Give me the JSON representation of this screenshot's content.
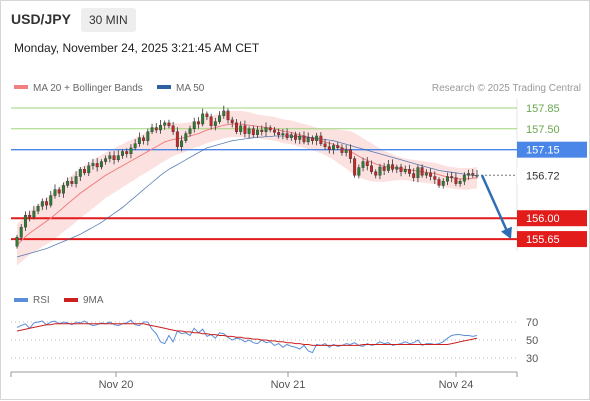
{
  "header": {
    "symbol": "USD/JPY",
    "timeframe": "30 MIN",
    "timestamp": "Monday, November 24, 2025 3:21:45 AM CET"
  },
  "legend": {
    "items": [
      {
        "label": "MA 20 + Bollinger Bands",
        "color": "#f08080"
      },
      {
        "label": "MA 50",
        "color": "#2f5fa3"
      }
    ]
  },
  "credit": "Research © 2025 Trading Central",
  "forecast_color": "#2f6db5",
  "chart_data": [
    {
      "type": "candlestick",
      "ylim": [
        155.45,
        158.0
      ],
      "x_ticks": [
        "Nov 20",
        "Nov 21",
        "Nov 24"
      ],
      "levels": [
        {
          "value": 157.85,
          "label": "157.85",
          "color": "#9fd67a",
          "kind": "resistance"
        },
        {
          "value": 157.5,
          "label": "157.50",
          "color": "#9fd67a",
          "kind": "resistance"
        },
        {
          "value": 157.15,
          "label": "157.15",
          "color": "#4a86e8",
          "kind": "pivot"
        },
        {
          "value": 156.0,
          "label": "156.00",
          "color": "#e21b1b",
          "kind": "support"
        },
        {
          "value": 155.65,
          "label": "155.65",
          "color": "#e21b1b",
          "kind": "support"
        }
      ],
      "last_price": {
        "value": 156.72,
        "label": "156.72"
      },
      "forecast": {
        "from": 156.72,
        "to": 155.65
      },
      "close": [
        155.68,
        155.85,
        156.05,
        156.02,
        156.12,
        156.2,
        156.28,
        156.22,
        156.38,
        156.48,
        156.42,
        156.55,
        156.62,
        156.58,
        156.7,
        156.82,
        156.76,
        156.88,
        156.92,
        156.86,
        156.95,
        157.0,
        157.05,
        156.98,
        157.05,
        157.12,
        157.08,
        157.18,
        157.25,
        157.35,
        157.3,
        157.45,
        157.52,
        157.48,
        157.56,
        157.6,
        157.55,
        157.45,
        157.2,
        157.3,
        157.42,
        157.5,
        157.62,
        157.58,
        157.75,
        157.7,
        157.55,
        157.62,
        157.72,
        157.8,
        157.65,
        157.6,
        157.45,
        157.55,
        157.42,
        157.5,
        157.4,
        157.48,
        157.45,
        157.52,
        157.48,
        157.44,
        157.4,
        157.42,
        157.35,
        157.4,
        157.32,
        157.38,
        157.28,
        157.35,
        157.3,
        157.38,
        157.25,
        157.2,
        157.15,
        157.22,
        157.18,
        157.1,
        157.15,
        157.0,
        156.72,
        156.85,
        156.95,
        156.88,
        156.78,
        156.72,
        156.86,
        156.8,
        156.9,
        156.82,
        156.86,
        156.78,
        156.82,
        156.75,
        156.68,
        156.85,
        156.72,
        156.76,
        156.7,
        156.65,
        156.55,
        156.62,
        156.7,
        156.68,
        156.58,
        156.62,
        156.72,
        156.75,
        156.72,
        156.72
      ],
      "ma20": [
        155.55,
        155.62,
        155.69,
        155.75,
        155.8,
        155.85,
        155.9,
        155.95,
        156.0,
        156.06,
        156.12,
        156.18,
        156.24,
        156.3,
        156.36,
        156.42,
        156.47,
        156.52,
        156.57,
        156.62,
        156.67,
        156.72,
        156.76,
        156.8,
        156.84,
        156.88,
        156.92,
        156.96,
        157.0,
        157.04,
        157.08,
        157.12,
        157.16,
        157.2,
        157.24,
        157.28,
        157.3,
        157.32,
        157.33,
        157.34,
        157.36,
        157.38,
        157.4,
        157.42,
        157.45,
        157.48,
        157.5,
        157.52,
        157.54,
        157.56,
        157.57,
        157.58,
        157.58,
        157.58,
        157.57,
        157.56,
        157.55,
        157.54,
        157.53,
        157.52,
        157.51,
        157.5,
        157.48,
        157.46,
        157.45,
        157.44,
        157.42,
        157.4,
        157.38,
        157.36,
        157.34,
        157.32,
        157.3,
        157.28,
        157.26,
        157.24,
        157.21,
        157.18,
        157.15,
        157.12,
        157.08,
        157.04,
        157.0,
        156.97,
        156.94,
        156.91,
        156.89,
        156.87,
        156.86,
        156.85,
        156.84,
        156.83,
        156.82,
        156.81,
        156.8,
        156.79,
        156.78,
        156.77,
        156.76,
        156.75,
        156.73,
        156.71,
        156.69,
        156.68,
        156.67,
        156.66,
        156.66,
        156.66,
        156.67,
        156.68
      ],
      "ma50": [
        155.35,
        155.37,
        155.39,
        155.41,
        155.43,
        155.45,
        155.47,
        155.49,
        155.52,
        155.55,
        155.58,
        155.61,
        155.64,
        155.67,
        155.7,
        155.73,
        155.77,
        155.81,
        155.85,
        155.89,
        155.93,
        155.98,
        156.03,
        156.08,
        156.13,
        156.18,
        156.24,
        156.3,
        156.36,
        156.42,
        156.48,
        156.54,
        156.6,
        156.66,
        156.72,
        156.77,
        156.82,
        156.86,
        156.9,
        156.94,
        156.98,
        157.02,
        157.06,
        157.1,
        157.14,
        157.18,
        157.2,
        157.22,
        157.24,
        157.26,
        157.28,
        157.3,
        157.31,
        157.32,
        157.33,
        157.34,
        157.35,
        157.36,
        157.36,
        157.37,
        157.37,
        157.38,
        157.38,
        157.38,
        157.38,
        157.38,
        157.37,
        157.37,
        157.36,
        157.36,
        157.35,
        157.34,
        157.33,
        157.32,
        157.31,
        157.3,
        157.28,
        157.26,
        157.24,
        157.22,
        157.2,
        157.18,
        157.16,
        157.14,
        157.12,
        157.1,
        157.08,
        157.06,
        157.04,
        157.02,
        157.0,
        156.98,
        156.96,
        156.94,
        156.92,
        156.9,
        156.88,
        156.86,
        156.84,
        156.82,
        156.8,
        156.79,
        156.78,
        156.77,
        156.76,
        156.75,
        156.74,
        156.73,
        156.72,
        156.71
      ],
      "bb_width": [
        0.35,
        0.35,
        0.36,
        0.36,
        0.37,
        0.38,
        0.38,
        0.39,
        0.4,
        0.4,
        0.41,
        0.41,
        0.42,
        0.42,
        0.42,
        0.42,
        0.41,
        0.41,
        0.4,
        0.4,
        0.39,
        0.38,
        0.38,
        0.37,
        0.37,
        0.36,
        0.36,
        0.35,
        0.35,
        0.34,
        0.34,
        0.34,
        0.33,
        0.33,
        0.32,
        0.32,
        0.3,
        0.28,
        0.26,
        0.25,
        0.24,
        0.23,
        0.22,
        0.22,
        0.22,
        0.22,
        0.22,
        0.22,
        0.22,
        0.22,
        0.22,
        0.22,
        0.22,
        0.22,
        0.22,
        0.22,
        0.21,
        0.2,
        0.2,
        0.2,
        0.2,
        0.2,
        0.2,
        0.2,
        0.2,
        0.2,
        0.2,
        0.2,
        0.2,
        0.2,
        0.2,
        0.2,
        0.21,
        0.22,
        0.24,
        0.26,
        0.28,
        0.3,
        0.32,
        0.34,
        0.35,
        0.35,
        0.34,
        0.33,
        0.32,
        0.3,
        0.28,
        0.26,
        0.24,
        0.22,
        0.2,
        0.19,
        0.18,
        0.18,
        0.18,
        0.18,
        0.18,
        0.18,
        0.18,
        0.18,
        0.18,
        0.18,
        0.18,
        0.18,
        0.18,
        0.18,
        0.18,
        0.18,
        0.18,
        0.18
      ]
    },
    {
      "type": "line",
      "ylim": [
        20,
        80
      ],
      "y_ticks": [
        70,
        50,
        30
      ],
      "series": [
        {
          "name": "RSI",
          "color": "#5b8ed8",
          "values": [
            64,
            66,
            68,
            63,
            69,
            70,
            71,
            67,
            70,
            71,
            68,
            70,
            69,
            67,
            70,
            69,
            71,
            68,
            66,
            67,
            69,
            68,
            70,
            67,
            66,
            68,
            69,
            72,
            67,
            66,
            70,
            70,
            62,
            57,
            48,
            46,
            55,
            48,
            60,
            57,
            58,
            55,
            63,
            58,
            62,
            54,
            56,
            52,
            58,
            57,
            53,
            50,
            52,
            51,
            48,
            50,
            47,
            46,
            50,
            47,
            48,
            44,
            46,
            42,
            45,
            43,
            42,
            40,
            44,
            38,
            36,
            45,
            44,
            46,
            42,
            45,
            43,
            44,
            46,
            45,
            47,
            44,
            43,
            46,
            44,
            45,
            48,
            46,
            47,
            44,
            45,
            46,
            48,
            46,
            47,
            50,
            44,
            46,
            46,
            45,
            46,
            48,
            52,
            55,
            56,
            56,
            55,
            55,
            54,
            55
          ]
        },
        {
          "name": "9MA",
          "color": "#cc1f1f",
          "values": [
            60,
            61,
            62,
            63,
            64,
            65,
            66,
            67,
            67,
            68,
            68,
            68,
            68,
            68,
            68,
            68,
            68,
            68,
            68,
            68,
            68,
            68,
            68,
            68,
            68,
            68,
            68,
            68,
            68,
            68,
            68,
            67,
            66,
            65,
            64,
            63,
            62,
            61,
            60,
            60,
            59,
            59,
            58,
            58,
            57,
            57,
            56,
            56,
            55,
            55,
            54,
            54,
            53,
            53,
            52,
            52,
            51,
            51,
            50,
            50,
            49,
            49,
            48,
            48,
            47,
            47,
            46,
            46,
            45,
            45,
            44,
            44,
            44,
            44,
            44,
            44,
            44,
            44,
            44,
            44,
            44,
            44,
            45,
            45,
            45,
            45,
            45,
            45,
            45,
            45,
            45,
            45,
            45,
            45,
            45,
            45,
            45,
            45,
            45,
            45,
            45,
            45,
            45,
            46,
            47,
            48,
            49,
            50,
            51,
            52
          ]
        }
      ]
    }
  ]
}
